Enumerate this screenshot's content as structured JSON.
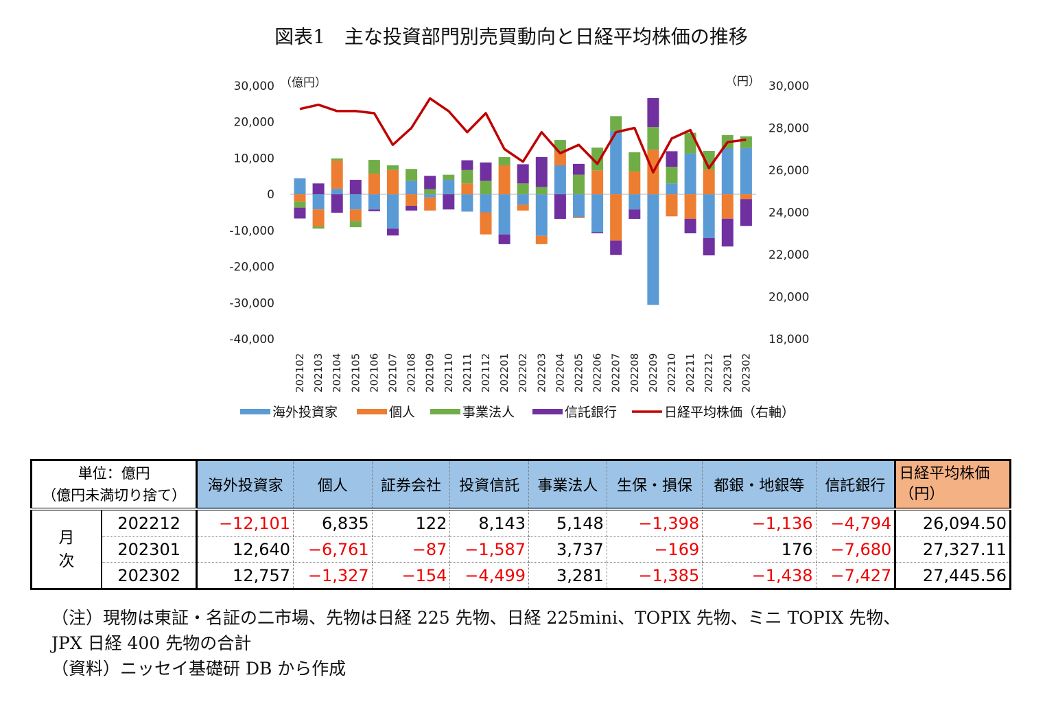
{
  "title": "図表1　主な投資部門別売買動向と日経平均株価の推移",
  "chart_data": {
    "type": "bar+line",
    "stacked": true,
    "left_axis": {
      "unit_label": "（億円）",
      "ylim": [
        -40000,
        30000
      ],
      "ticks": [
        "30,000",
        "20,000",
        "10,000",
        "0",
        "-10,000",
        "-20,000",
        "-30,000",
        "-40,000"
      ]
    },
    "right_axis": {
      "unit_label": "（円）",
      "ylim": [
        18000,
        30000
      ],
      "ticks": [
        "30,000",
        "28,000",
        "26,000",
        "24,000",
        "22,000",
        "20,000",
        "18,000"
      ]
    },
    "categories": [
      "202102",
      "202103",
      "202104",
      "202105",
      "202106",
      "202107",
      "202108",
      "202109",
      "202110",
      "202111",
      "202112",
      "202201",
      "202202",
      "202203",
      "202204",
      "202205",
      "202206",
      "202207",
      "202208",
      "202209",
      "202210",
      "202211",
      "202212",
      "202301",
      "202302"
    ],
    "series": [
      {
        "name": "海外投資家",
        "type": "bar",
        "color": "#5b9bd5",
        "values": [
          4400,
          -4200,
          1500,
          -4200,
          -4200,
          -9500,
          3700,
          -900,
          4000,
          -4800,
          -5000,
          -11100,
          -2900,
          -11500,
          8000,
          -6300,
          -10500,
          17500,
          -4200,
          -30600,
          3000,
          11300,
          -12101,
          12640,
          12757
        ]
      },
      {
        "name": "個人",
        "type": "bar",
        "color": "#ed7d31",
        "values": [
          -2000,
          -4700,
          7800,
          -3200,
          5700,
          6700,
          -3200,
          -3600,
          0,
          3000,
          -6100,
          8000,
          -1600,
          -2300,
          3800,
          -300,
          6600,
          -12800,
          6300,
          12300,
          -6100,
          -6800,
          6835,
          -6761,
          -1327
        ]
      },
      {
        "name": "事業法人",
        "type": "bar",
        "color": "#70ad47",
        "values": [
          -1700,
          -600,
          600,
          -1700,
          3800,
          1300,
          3300,
          1400,
          1400,
          3700,
          3700,
          2300,
          3000,
          2000,
          3200,
          5400,
          6300,
          4100,
          5300,
          6300,
          4600,
          5700,
          5148,
          3737,
          3281
        ]
      },
      {
        "name": "信託銀行",
        "type": "bar",
        "color": "#7030a0",
        "values": [
          -3000,
          3000,
          -5100,
          4000,
          -500,
          -1900,
          -1300,
          3700,
          -4200,
          2700,
          5100,
          -2700,
          5300,
          8300,
          -6800,
          3000,
          -300,
          -4000,
          -2600,
          8000,
          4300,
          -4000,
          -4794,
          -7680,
          -7427
        ]
      },
      {
        "name": "日経平均株価（右軸）",
        "type": "line",
        "axis": "right",
        "color": "#c00000",
        "values": [
          28900,
          29100,
          28800,
          28800,
          28700,
          27200,
          28000,
          29400,
          28800,
          27800,
          28700,
          27000,
          26400,
          27800,
          26800,
          27200,
          26300,
          27800,
          28000,
          25900,
          27500,
          27900,
          26094.5,
          27327.11,
          27445.56
        ]
      }
    ],
    "legend_placement": "bottom",
    "grid": false
  },
  "table": {
    "unit_line1": "単位：億円",
    "unit_line2": "（億円未満切り捨て）",
    "headers": [
      "海外投資家",
      "個人",
      "証券会社",
      "投資信託",
      "事業法人",
      "生保・損保",
      "都銀・地銀等",
      "信託銀行"
    ],
    "nikkei_header_line1": "日経平均株価",
    "nikkei_header_line2": "（円）",
    "row_group_label": "月次",
    "rows": [
      {
        "month": "202212",
        "values": [
          "−12,101",
          "6,835",
          "122",
          "8,143",
          "5,148",
          "−1,398",
          "−1,136",
          "−4,794"
        ],
        "nikkei": "26,094.50"
      },
      {
        "month": "202301",
        "values": [
          "12,640",
          "−6,761",
          "−87",
          "−1,587",
          "3,737",
          "−169",
          "176",
          "−7,680"
        ],
        "nikkei": "27,327.11"
      },
      {
        "month": "202302",
        "values": [
          "12,757",
          "−1,327",
          "−154",
          "−4,499",
          "3,281",
          "−1,385",
          "−1,438",
          "−7,427"
        ],
        "nikkei": "27,445.56"
      }
    ]
  },
  "notes": [
    "（注）現物は東証・名証の二市場、先物は日経 225 先物、日経 225mini、TOPIX 先物、ミニ TOPIX 先物、",
    "JPX 日経 400 先物の合計",
    "（資料）ニッセイ基礎研 DB から作成"
  ]
}
